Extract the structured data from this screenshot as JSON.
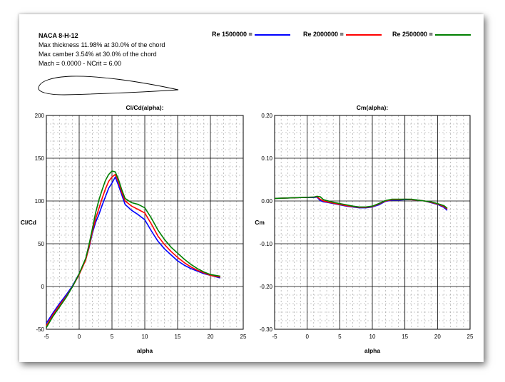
{
  "info": {
    "name": "NACA 8-H-12",
    "thickness": "Max thickness 11.98% at 30.0% of the chord",
    "camber": "Max camber 3.54% at 30.0% of the chord",
    "conditions": "Mach = 0.0000 - NCrit = 6.00"
  },
  "legend": [
    {
      "label": "Re 1500000 =",
      "color": "#0000ff"
    },
    {
      "label": "Re 2000000 =",
      "color": "#ff0000"
    },
    {
      "label": "Re 2500000 =",
      "color": "#008000"
    }
  ],
  "chart_data": [
    {
      "type": "line",
      "title": "Cl/Cd(alpha):",
      "xlabel": "alpha",
      "ylabel": "Cl/Cd",
      "xlim": [
        -5,
        25
      ],
      "ylim": [
        -50,
        200
      ],
      "xticks": [
        "-5",
        "0",
        "5",
        "10",
        "15",
        "20",
        "25"
      ],
      "yticks": [
        "-50",
        "0",
        "50",
        "100",
        "150",
        "200"
      ],
      "grid": true,
      "series": [
        {
          "name": "Re 1500000",
          "color": "#0000ff",
          "x": [
            -5,
            -4,
            -3,
            -2,
            -1,
            0,
            1,
            1.5,
            2,
            2.5,
            3,
            3.5,
            4,
            4.5,
            5,
            5.5,
            6,
            6.5,
            7,
            8,
            9,
            10,
            11,
            12,
            13,
            14,
            15,
            16,
            17,
            18,
            19,
            20,
            21.5
          ],
          "y": [
            -43,
            -31,
            -20,
            -10,
            1,
            15,
            32,
            45,
            62,
            75,
            84,
            95,
            105,
            115,
            121,
            128,
            118,
            107,
            96,
            89,
            84,
            78,
            65,
            53,
            44,
            37,
            30,
            25,
            21,
            18,
            15,
            13,
            10
          ]
        },
        {
          "name": "Re 2000000",
          "color": "#ff0000",
          "x": [
            -5,
            -4,
            -3,
            -2,
            -1,
            0,
            1,
            1.5,
            2,
            2.5,
            3,
            3.5,
            4,
            4.5,
            5,
            5.5,
            6,
            6.5,
            7,
            8,
            9,
            10,
            11,
            12,
            13,
            14,
            15,
            16,
            17,
            18,
            19,
            20,
            21.5
          ],
          "y": [
            -46,
            -33,
            -22,
            -12,
            0,
            14,
            31,
            46,
            64,
            79,
            91,
            103,
            114,
            123,
            128,
            131,
            122,
            110,
            100,
            94,
            90,
            86,
            73,
            59,
            49,
            41,
            34,
            28,
            23,
            19,
            16,
            13,
            11
          ]
        },
        {
          "name": "Re 2500000",
          "color": "#008000",
          "x": [
            -5,
            -4,
            -3,
            -2,
            -1,
            0,
            1,
            1.5,
            2,
            2.5,
            3,
            3.5,
            4,
            4.5,
            5,
            5.5,
            6,
            6.5,
            7,
            8,
            9,
            10,
            11,
            12,
            13,
            14,
            15,
            16,
            17,
            18,
            19,
            20,
            21.5
          ],
          "y": [
            -48,
            -35,
            -24,
            -13,
            0,
            15,
            33,
            49,
            67,
            86,
            101,
            113,
            124,
            131,
            135,
            134,
            125,
            113,
            103,
            98,
            96,
            92,
            80,
            66,
            55,
            46,
            39,
            32,
            26,
            21,
            17,
            14,
            12
          ]
        }
      ]
    },
    {
      "type": "line",
      "title": "Cm(alpha):",
      "xlabel": "alpha",
      "ylabel": "Cm",
      "xlim": [
        -5,
        25
      ],
      "ylim": [
        -0.3,
        0.2
      ],
      "xticks": [
        "-5",
        "0",
        "5",
        "10",
        "15",
        "20",
        "25"
      ],
      "yticks": [
        "-0.30",
        "-0.20",
        "-0.10",
        "0.00",
        "0.10",
        "0.20"
      ],
      "grid": true,
      "series": [
        {
          "name": "Re 1500000",
          "color": "#0000ff",
          "x": [
            -5,
            -3,
            -1,
            1,
            1.5,
            2,
            2.5,
            3,
            4,
            5,
            6,
            7,
            8,
            9,
            10,
            11,
            12,
            13,
            14,
            15,
            16,
            17,
            18,
            19,
            20,
            21,
            21.5
          ],
          "y": [
            0.006,
            0.007,
            0.008,
            0.008,
            0.009,
            0.001,
            -0.002,
            -0.003,
            -0.006,
            -0.009,
            -0.012,
            -0.014,
            -0.016,
            -0.016,
            -0.014,
            -0.009,
            -0.001,
            0.002,
            0.002,
            0.003,
            0.003,
            0.002,
            0.0,
            -0.004,
            -0.008,
            -0.015,
            -0.022
          ]
        },
        {
          "name": "Re 2000000",
          "color": "#ff0000",
          "x": [
            -5,
            -3,
            -1,
            1,
            1.5,
            2,
            2.5,
            3,
            4,
            5,
            6,
            7,
            8,
            9,
            10,
            11,
            12,
            13,
            14,
            15,
            16,
            17,
            18,
            19,
            20,
            21,
            21.5
          ],
          "y": [
            0.006,
            0.007,
            0.008,
            0.009,
            0.01,
            0.004,
            0.0,
            -0.002,
            -0.005,
            -0.008,
            -0.011,
            -0.013,
            -0.015,
            -0.015,
            -0.013,
            -0.007,
            0.0,
            0.003,
            0.003,
            0.004,
            0.003,
            0.002,
            0.0,
            -0.003,
            -0.007,
            -0.013,
            -0.019
          ]
        },
        {
          "name": "Re 2500000",
          "color": "#008000",
          "x": [
            -5,
            -3,
            -1,
            1,
            1.5,
            2,
            2.5,
            3,
            4,
            5,
            6,
            7,
            8,
            9,
            10,
            11,
            12,
            13,
            14,
            15,
            16,
            17,
            18,
            19,
            20,
            21,
            21.5
          ],
          "y": [
            0.006,
            0.007,
            0.008,
            0.009,
            0.011,
            0.01,
            0.003,
            0.001,
            -0.003,
            -0.006,
            -0.009,
            -0.012,
            -0.014,
            -0.014,
            -0.012,
            -0.006,
            0.001,
            0.004,
            0.004,
            0.004,
            0.004,
            0.002,
            0.0,
            -0.002,
            -0.006,
            -0.011,
            -0.017
          ]
        }
      ]
    }
  ]
}
